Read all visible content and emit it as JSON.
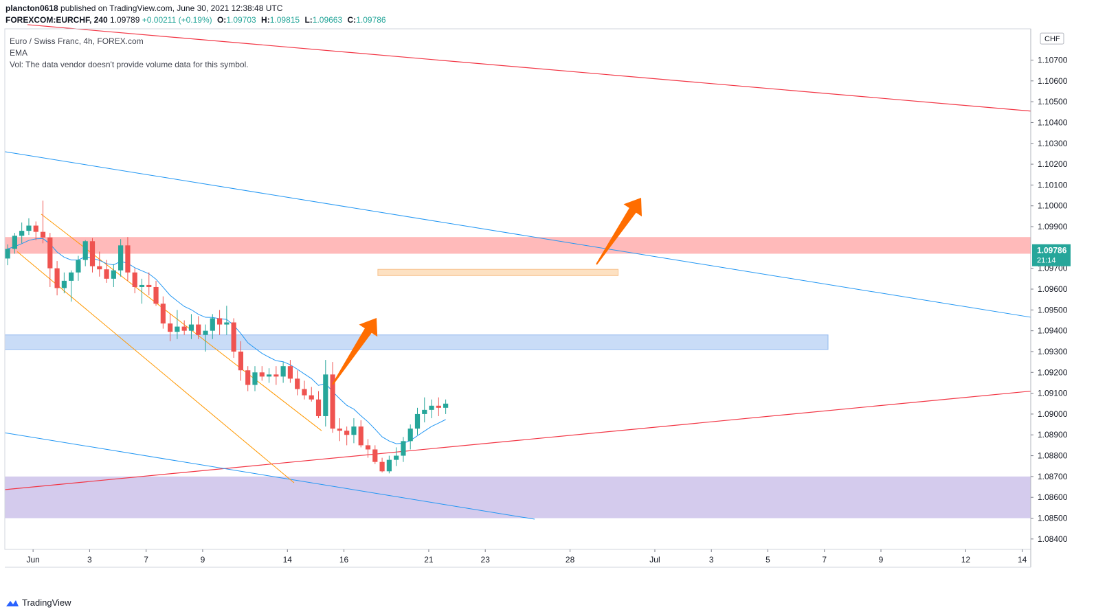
{
  "header": {
    "author": "plancton0618",
    "published_text": " published on TradingView.com, June 30, 2021 12:38:48 UTC",
    "symbol": "FOREXCOM:EURCHF, 240",
    "last": "1.09789",
    "change": "+0.00211 (+0.19%)",
    "o_label": "O:",
    "o": "1.09703",
    "h_label": "H:",
    "h": "1.09815",
    "l_label": "L:",
    "l": "1.09663",
    "c_label": "C:",
    "c": "1.09786"
  },
  "legend": {
    "title": "Euro / Swiss Franc, 4h, FOREX.com",
    "indicator": "EMA",
    "volume_note": "Vol: The data vendor doesn't provide volume data for this symbol."
  },
  "footer": {
    "brand": "TradingView"
  },
  "colors": {
    "bull": "#26a69a",
    "bear": "#ef5350",
    "ema": "#2196f3",
    "trend_red": "#f23645",
    "trend_blue": "#2196f3",
    "channel_orange": "#ff9800",
    "arrow": "#ff6d00",
    "zone_red": "#ffb3b3",
    "zone_blue": "#c9dcf7",
    "zone_purple": "#d2c8ec",
    "zone_orange": "#fde1c2",
    "price_tag": "#26a69a"
  },
  "chart_data": {
    "type": "candlestick",
    "symbol": "FOREXCOM:EURCHF",
    "interval": "240",
    "currency": "CHF",
    "ylim": [
      1.0835,
      1.1085
    ],
    "y_ticks": [
      "1.10700",
      "1.10600",
      "1.10500",
      "1.10400",
      "1.10300",
      "1.10200",
      "1.10100",
      "1.10000",
      "1.09900",
      "1.09700",
      "1.09600",
      "1.09500",
      "1.09400",
      "1.09300",
      "1.09200",
      "1.09100",
      "1.09000",
      "1.08900",
      "1.08800",
      "1.08700",
      "1.08600",
      "1.08500",
      "1.08400"
    ],
    "y_tick_values": [
      1.107,
      1.106,
      1.105,
      1.104,
      1.103,
      1.102,
      1.101,
      1.1,
      1.099,
      1.097,
      1.096,
      1.095,
      1.094,
      1.093,
      1.092,
      1.091,
      1.09,
      1.089,
      1.088,
      1.087,
      1.086,
      1.085,
      1.084
    ],
    "x_ticks": [
      {
        "label": "Jun",
        "x": 1
      },
      {
        "label": "3",
        "x": 3
      },
      {
        "label": "7",
        "x": 5
      },
      {
        "label": "9",
        "x": 7
      },
      {
        "label": "14",
        "x": 10
      },
      {
        "label": "16",
        "x": 12
      },
      {
        "label": "21",
        "x": 15
      },
      {
        "label": "23",
        "x": 17
      },
      {
        "label": "28",
        "x": 20
      },
      {
        "label": "Jul",
        "x": 23
      },
      {
        "label": "3",
        "x": 25
      },
      {
        "label": "5",
        "x": 27
      },
      {
        "label": "7",
        "x": 29
      },
      {
        "label": "9",
        "x": 31
      },
      {
        "label": "12",
        "x": 34
      },
      {
        "label": "14",
        "x": 36
      }
    ],
    "x_range": [
      0,
      36.3
    ],
    "last_price": "1.09786",
    "countdown": "21:14",
    "candles": [
      [
        0.1,
        1.09747,
        1.09815,
        1.09715,
        1.09793
      ],
      [
        0.35,
        1.09793,
        1.0987,
        1.0977,
        1.09856
      ],
      [
        0.6,
        1.09856,
        1.0992,
        1.0982,
        1.0988
      ],
      [
        0.85,
        1.0988,
        1.0994,
        1.0986,
        1.09905
      ],
      [
        1.1,
        1.09905,
        1.09925,
        1.09835,
        1.09875
      ],
      [
        1.35,
        1.09875,
        1.10025,
        1.0982,
        1.09848
      ],
      [
        1.6,
        1.09848,
        1.0987,
        1.0961,
        1.097
      ],
      [
        1.85,
        1.097,
        1.09735,
        1.0957,
        1.09605
      ],
      [
        2.1,
        1.09605,
        1.0968,
        1.0958,
        1.0964
      ],
      [
        2.35,
        1.0964,
        1.0969,
        1.0954,
        1.0968
      ],
      [
        2.6,
        1.0968,
        1.0976,
        1.0964,
        1.0974
      ],
      [
        2.85,
        1.0974,
        1.09835,
        1.0971,
        1.0983
      ],
      [
        3.1,
        1.0983,
        1.09845,
        1.0968,
        1.0971
      ],
      [
        3.35,
        1.0971,
        1.0978,
        1.0966,
        1.09695
      ],
      [
        3.6,
        1.09695,
        1.0974,
        1.0963,
        1.0965
      ],
      [
        3.85,
        1.0965,
        1.0972,
        1.0961,
        1.0969
      ],
      [
        4.1,
        1.0969,
        1.0984,
        1.0966,
        1.0981
      ],
      [
        4.35,
        1.0981,
        1.0985,
        1.0964,
        1.0968
      ],
      [
        4.6,
        1.0968,
        1.097,
        1.0958,
        1.0961
      ],
      [
        4.85,
        1.0961,
        1.0965,
        1.0953,
        1.0962
      ],
      [
        5.1,
        1.0962,
        1.0968,
        1.0957,
        1.0961
      ],
      [
        5.35,
        1.0961,
        1.0964,
        1.0952,
        1.0953
      ],
      [
        5.6,
        1.0953,
        1.09565,
        1.0941,
        1.09435
      ],
      [
        5.85,
        1.09435,
        1.0948,
        1.0935,
        1.09395
      ],
      [
        6.1,
        1.09395,
        1.095,
        1.0936,
        1.0942
      ],
      [
        6.35,
        1.0942,
        1.0945,
        1.0938,
        1.094
      ],
      [
        6.6,
        1.094,
        1.0948,
        1.0936,
        1.0943
      ],
      [
        6.85,
        1.0943,
        1.0947,
        1.0936,
        1.0938
      ],
      [
        7.1,
        1.0938,
        1.0943,
        1.093,
        1.094
      ],
      [
        7.35,
        1.094,
        1.0948,
        1.0936,
        1.0946
      ],
      [
        7.6,
        1.0946,
        1.095,
        1.0938,
        1.0943
      ],
      [
        7.85,
        1.0943,
        1.0952,
        1.0938,
        1.0944
      ],
      [
        8.1,
        1.0944,
        1.0946,
        1.0927,
        1.093
      ],
      [
        8.35,
        1.093,
        1.0935,
        1.0916,
        1.0921
      ],
      [
        8.6,
        1.0921,
        1.0923,
        1.0911,
        1.0914
      ],
      [
        8.85,
        1.0914,
        1.0923,
        1.0911,
        1.092
      ],
      [
        9.1,
        1.092,
        1.0923,
        1.0916,
        1.0918
      ],
      [
        9.35,
        1.0918,
        1.0922,
        1.0915,
        1.0919
      ],
      [
        9.6,
        1.0919,
        1.0923,
        1.0914,
        1.0918
      ],
      [
        9.85,
        1.0918,
        1.0925,
        1.0915,
        1.0923
      ],
      [
        10.1,
        1.0923,
        1.0926,
        1.0915,
        1.0917
      ],
      [
        10.35,
        1.0917,
        1.0921,
        1.0909,
        1.0912
      ],
      [
        10.6,
        1.0912,
        1.0916,
        1.0907,
        1.0909
      ],
      [
        10.85,
        1.0909,
        1.0913,
        1.0906,
        1.0907
      ],
      [
        11.1,
        1.0907,
        1.0911,
        1.0898,
        1.0899
      ],
      [
        11.35,
        1.0899,
        1.0926,
        1.0894,
        1.0919
      ],
      [
        11.6,
        1.0919,
        1.0925,
        1.0891,
        1.0893
      ],
      [
        11.85,
        1.0893,
        1.0898,
        1.0887,
        1.0892
      ],
      [
        12.1,
        1.0892,
        1.0894,
        1.0885,
        1.089
      ],
      [
        12.35,
        1.089,
        1.0898,
        1.0886,
        1.0894
      ],
      [
        12.6,
        1.0894,
        1.0897,
        1.0884,
        1.0885
      ],
      [
        12.85,
        1.0885,
        1.0888,
        1.0879,
        1.0883
      ],
      [
        13.1,
        1.0883,
        1.0885,
        1.0876,
        1.0877
      ],
      [
        13.35,
        1.0877,
        1.0879,
        1.0872,
        1.08725
      ],
      [
        13.6,
        1.08725,
        1.088,
        1.08715,
        1.0878
      ],
      [
        13.85,
        1.0878,
        1.0884,
        1.0875,
        1.088
      ],
      [
        14.1,
        1.088,
        1.0889,
        1.0877,
        1.0887
      ],
      [
        14.35,
        1.0887,
        1.0895,
        1.0883,
        1.0893
      ],
      [
        14.6,
        1.0893,
        1.0903,
        1.089,
        1.09
      ],
      [
        14.85,
        1.09,
        1.0908,
        1.0896,
        1.0902
      ],
      [
        15.1,
        1.0902,
        1.0907,
        1.0898,
        1.0904
      ],
      [
        15.35,
        1.0904,
        1.0908,
        1.0899,
        1.0903
      ],
      [
        15.6,
        1.0903,
        1.0907,
        1.09,
        1.0905
      ]
    ]
  }
}
